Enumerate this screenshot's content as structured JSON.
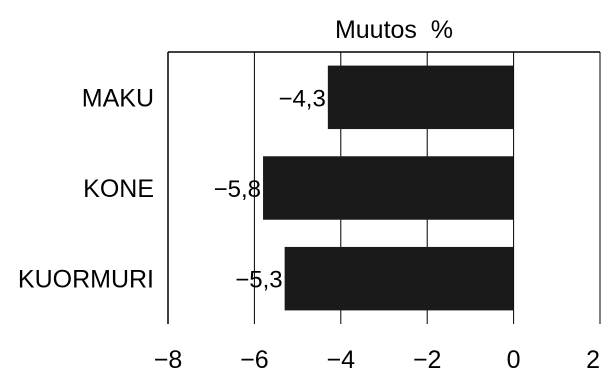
{
  "chart_data": {
    "type": "bar",
    "orientation": "horizontal",
    "title": "Muutos  %",
    "categories": [
      "MAKU",
      "KONE",
      "KUORMURI"
    ],
    "values": [
      -4.3,
      -5.8,
      -5.3
    ],
    "value_labels": [
      "−4,3",
      "−5,8",
      "−5,3"
    ],
    "xlim": [
      -8,
      2
    ],
    "x_ticks": [
      -8,
      -6,
      -4,
      -2,
      0,
      2
    ],
    "x_tick_labels": [
      "−8",
      "−6",
      "−4",
      "−2",
      "0",
      "2"
    ],
    "grid": true,
    "legend": "none",
    "bar_color": "#1a1a1a",
    "xlabel": "",
    "ylabel": ""
  }
}
